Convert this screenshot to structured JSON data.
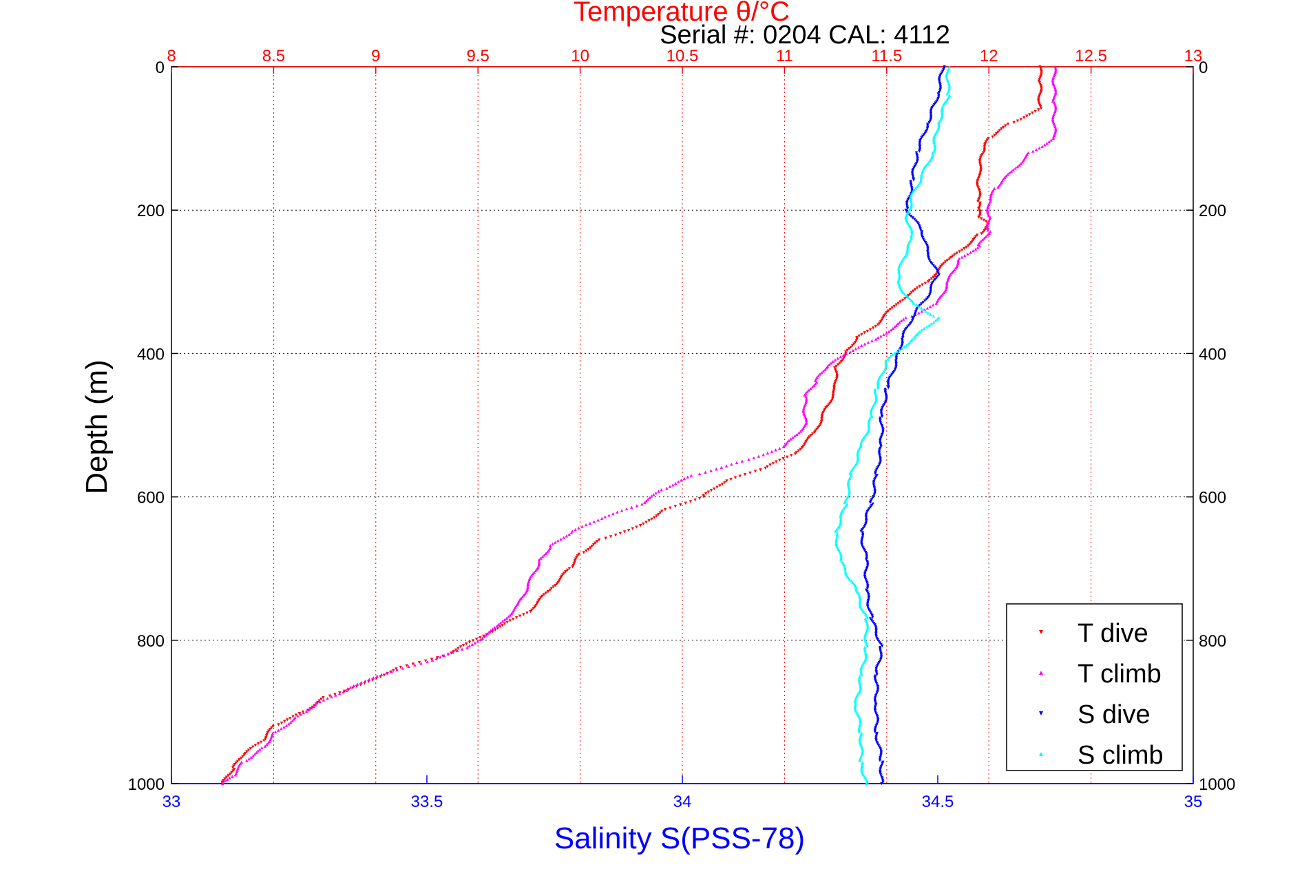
{
  "chart_data": {
    "type": "scatter",
    "title": "Temperature θ/°C",
    "subtitle": "Serial #: 0204  CAL: 4112",
    "xlabel": "Salinity S(PSS-78)",
    "ylabel": "Depth (m)",
    "top_axis": {
      "label": "Temperature θ/°C",
      "range": [
        8,
        13
      ],
      "ticks": [
        "8",
        "8.5",
        "9",
        "9.5",
        "10",
        "10.5",
        "11",
        "11.5",
        "12",
        "12.5",
        "13"
      ],
      "color": "#ff0000"
    },
    "bottom_axis": {
      "label": "Salinity S(PSS-78)",
      "range": [
        33,
        35
      ],
      "ticks": [
        "33",
        "33.5",
        "34",
        "34.5",
        "35"
      ],
      "color": "#0000ff"
    },
    "y_axis": {
      "label": "Depth (m)",
      "range": [
        0,
        1000
      ],
      "reversed": true,
      "ticks": [
        "0",
        "200",
        "400",
        "600",
        "800",
        "1000"
      ]
    },
    "grid": true,
    "legend": {
      "placement": "bottom-right",
      "entries": [
        "T dive",
        "T climb",
        "S dive",
        "S climb"
      ]
    },
    "series": [
      {
        "name": "T dive",
        "axis": "temperature",
        "color": "#ff0000",
        "marker": "triangle-down",
        "points": [
          [
            12.25,
            0
          ],
          [
            12.25,
            20
          ],
          [
            12.25,
            60
          ],
          [
            12.1,
            80
          ],
          [
            12.0,
            100
          ],
          [
            11.97,
            120
          ],
          [
            11.95,
            150
          ],
          [
            11.95,
            190
          ],
          [
            11.95,
            200
          ],
          [
            11.95,
            210
          ],
          [
            12.0,
            220
          ],
          [
            11.95,
            235
          ],
          [
            11.85,
            260
          ],
          [
            11.8,
            270
          ],
          [
            11.7,
            300
          ],
          [
            11.55,
            330
          ],
          [
            11.45,
            360
          ],
          [
            11.35,
            380
          ],
          [
            11.3,
            400
          ],
          [
            11.25,
            420
          ],
          [
            11.25,
            450
          ],
          [
            11.2,
            480
          ],
          [
            11.15,
            510
          ],
          [
            11.05,
            540
          ],
          [
            10.9,
            560
          ],
          [
            10.7,
            580
          ],
          [
            10.6,
            600
          ],
          [
            10.4,
            620
          ],
          [
            10.3,
            640
          ],
          [
            10.1,
            660
          ],
          [
            10.0,
            680
          ],
          [
            9.95,
            700
          ],
          [
            9.85,
            730
          ],
          [
            9.75,
            760
          ],
          [
            9.55,
            790
          ],
          [
            9.35,
            820
          ],
          [
            9.1,
            840
          ],
          [
            8.95,
            860
          ],
          [
            8.75,
            880
          ],
          [
            8.65,
            900
          ],
          [
            8.5,
            920
          ],
          [
            8.45,
            940
          ],
          [
            8.35,
            960
          ],
          [
            8.3,
            980
          ],
          [
            8.25,
            1000
          ]
        ]
      },
      {
        "name": "T climb",
        "axis": "temperature",
        "color": "#ff00ff",
        "marker": "triangle-up",
        "points": [
          [
            12.32,
            0
          ],
          [
            12.32,
            50
          ],
          [
            12.32,
            100
          ],
          [
            12.2,
            120
          ],
          [
            12.1,
            150
          ],
          [
            12.03,
            170
          ],
          [
            12.0,
            190
          ],
          [
            12.0,
            210
          ],
          [
            12.0,
            230
          ],
          [
            11.95,
            250
          ],
          [
            11.85,
            270
          ],
          [
            11.8,
            300
          ],
          [
            11.75,
            330
          ],
          [
            11.6,
            350
          ],
          [
            11.45,
            380
          ],
          [
            11.3,
            400
          ],
          [
            11.2,
            420
          ],
          [
            11.15,
            440
          ],
          [
            11.1,
            460
          ],
          [
            11.1,
            500
          ],
          [
            11.0,
            530
          ],
          [
            10.8,
            550
          ],
          [
            10.55,
            570
          ],
          [
            10.4,
            590
          ],
          [
            10.3,
            610
          ],
          [
            10.1,
            630
          ],
          [
            9.95,
            650
          ],
          [
            9.85,
            670
          ],
          [
            9.8,
            690
          ],
          [
            9.75,
            720
          ],
          [
            9.7,
            750
          ],
          [
            9.6,
            780
          ],
          [
            9.45,
            810
          ],
          [
            9.25,
            830
          ],
          [
            9.0,
            850
          ],
          [
            8.85,
            870
          ],
          [
            8.7,
            890
          ],
          [
            8.6,
            910
          ],
          [
            8.5,
            930
          ],
          [
            8.45,
            950
          ],
          [
            8.35,
            970
          ],
          [
            8.3,
            990
          ],
          [
            8.25,
            1000
          ]
        ]
      },
      {
        "name": "S dive",
        "axis": "salinity",
        "color": "#0000ff",
        "marker": "triangle-down",
        "points": [
          [
            34.51,
            0
          ],
          [
            34.5,
            40
          ],
          [
            34.48,
            80
          ],
          [
            34.46,
            120
          ],
          [
            34.45,
            160
          ],
          [
            34.44,
            200
          ],
          [
            34.47,
            230
          ],
          [
            34.48,
            260
          ],
          [
            34.5,
            290
          ],
          [
            34.48,
            320
          ],
          [
            34.45,
            350
          ],
          [
            34.43,
            380
          ],
          [
            34.42,
            410
          ],
          [
            34.4,
            450
          ],
          [
            34.39,
            490
          ],
          [
            34.39,
            530
          ],
          [
            34.38,
            570
          ],
          [
            34.37,
            610
          ],
          [
            34.35,
            650
          ],
          [
            34.36,
            690
          ],
          [
            34.36,
            730
          ],
          [
            34.37,
            770
          ],
          [
            34.39,
            810
          ],
          [
            34.38,
            850
          ],
          [
            34.38,
            890
          ],
          [
            34.38,
            930
          ],
          [
            34.39,
            970
          ],
          [
            34.39,
            1000
          ]
        ]
      },
      {
        "name": "S climb",
        "axis": "salinity",
        "color": "#00ffff",
        "marker": "triangle-up",
        "points": [
          [
            34.52,
            0
          ],
          [
            34.52,
            40
          ],
          [
            34.5,
            80
          ],
          [
            34.49,
            120
          ],
          [
            34.47,
            150
          ],
          [
            34.45,
            180
          ],
          [
            34.44,
            210
          ],
          [
            34.45,
            240
          ],
          [
            34.43,
            270
          ],
          [
            34.42,
            300
          ],
          [
            34.45,
            330
          ],
          [
            34.5,
            350
          ],
          [
            34.45,
            380
          ],
          [
            34.4,
            410
          ],
          [
            34.38,
            450
          ],
          [
            34.37,
            490
          ],
          [
            34.35,
            530
          ],
          [
            34.33,
            570
          ],
          [
            34.32,
            610
          ],
          [
            34.3,
            650
          ],
          [
            34.31,
            690
          ],
          [
            34.34,
            730
          ],
          [
            34.36,
            770
          ],
          [
            34.36,
            810
          ],
          [
            34.35,
            850
          ],
          [
            34.34,
            890
          ],
          [
            34.35,
            930
          ],
          [
            34.35,
            970
          ],
          [
            34.36,
            1000
          ]
        ]
      }
    ]
  }
}
